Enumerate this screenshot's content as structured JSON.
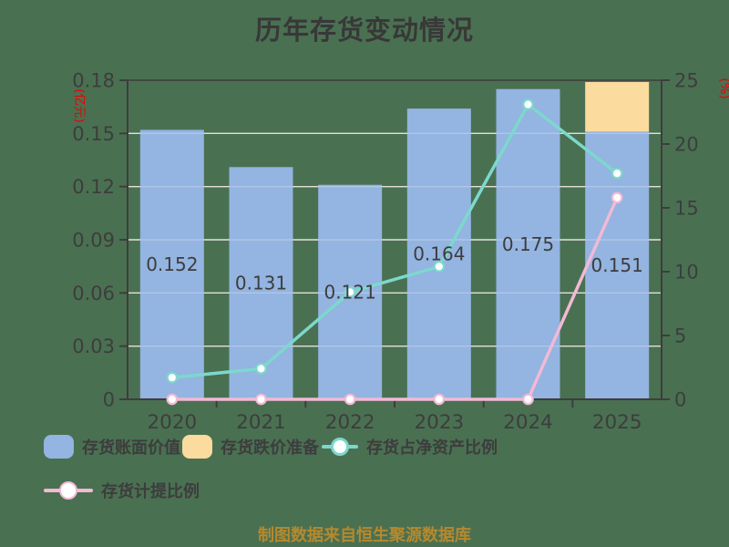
{
  "title": "历年存货变动情况",
  "source_note": "制图数据来自恒生聚源数据库",
  "colors": {
    "background": "#4a7052",
    "title": "#383838",
    "text": "#3d3d3d",
    "axis": "#3d3d3d",
    "gridline": "#d9d5cc",
    "axis_unit": "#ee0000",
    "bar_book_value": "#94b4e1",
    "bar_provision": "#fbdb9e",
    "line_net_asset_ratio": "#7cd8cc",
    "line_provision_ratio": "#f2b9d5",
    "marker_fill": "#ffffff",
    "source_note": "#b5892e"
  },
  "legend": {
    "items": [
      {
        "label": "存货账面价值",
        "type": "swatch",
        "color_key": "bar_book_value"
      },
      {
        "label": "存货跌价准备",
        "type": "swatch",
        "color_key": "bar_provision"
      },
      {
        "label": "存货占净资产比例",
        "type": "line",
        "color_key": "line_net_asset_ratio"
      },
      {
        "label": "存货计提比例",
        "type": "line",
        "color_key": "line_provision_ratio"
      }
    ]
  },
  "chart_data": {
    "type": "bar",
    "title": "历年存货变动情况",
    "categories": [
      "2020",
      "2021",
      "2022",
      "2023",
      "2024",
      "2025"
    ],
    "series": [
      {
        "kind": "bar",
        "name": "存货账面价值",
        "axis": "left",
        "color_key": "bar_book_value",
        "values": [
          0.152,
          0.131,
          0.121,
          0.164,
          0.175,
          0.151
        ],
        "value_labels": [
          "0.152",
          "0.131",
          "0.121",
          "0.164",
          "0.175",
          "0.151"
        ]
      },
      {
        "kind": "bar-stacked",
        "name": "存货跌价准备",
        "axis": "left",
        "color_key": "bar_provision",
        "values": [
          0,
          0,
          0,
          0,
          0,
          0.028
        ]
      },
      {
        "kind": "line",
        "name": "存货占净资产比例",
        "axis": "right",
        "color_key": "line_net_asset_ratio",
        "values": [
          1.7,
          2.4,
          8.4,
          10.4,
          23.1,
          17.7
        ]
      },
      {
        "kind": "line",
        "name": "存货计提比例",
        "axis": "right",
        "color_key": "line_provision_ratio",
        "values": [
          0,
          0,
          0,
          0,
          0,
          15.8
        ]
      }
    ],
    "left_axis": {
      "unit": "(亿元)",
      "min": 0,
      "max": 0.18,
      "ticks": [
        0,
        0.03,
        0.06,
        0.09,
        0.12,
        0.15,
        0.18
      ],
      "tick_labels": [
        "0",
        "0.03",
        "0.06",
        "0.09",
        "0.12",
        "0.15",
        "0.18"
      ]
    },
    "right_axis": {
      "unit": "(%)",
      "min": 0,
      "max": 25,
      "ticks": [
        0,
        5,
        10,
        15,
        20,
        25
      ],
      "tick_labels": [
        "0",
        "5",
        "10",
        "15",
        "20",
        "25"
      ]
    },
    "grid": true,
    "legend_position": "bottom"
  }
}
